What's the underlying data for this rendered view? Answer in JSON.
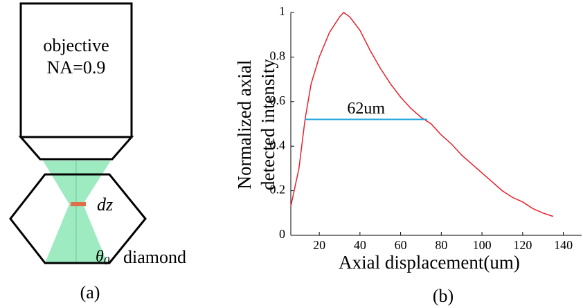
{
  "diagram": {
    "objective": [
      "objective",
      "NA=0.9"
    ],
    "dz": "dz",
    "theta": "θ",
    "theta_sub": "0",
    "material": "diamond",
    "panel": "(a)"
  },
  "chart_data": {
    "type": "line",
    "panel": "(b)",
    "x_label": "Axial displacement(um)",
    "y_label": [
      "Normalized axial",
      "detected intensity"
    ],
    "x": [
      6,
      10,
      13,
      16,
      20,
      25,
      30,
      32,
      35,
      40,
      45,
      50,
      55,
      60,
      65,
      70,
      75,
      80,
      85,
      90,
      95,
      100,
      105,
      110,
      115,
      120,
      125,
      130,
      135
    ],
    "series": [
      {
        "color": "#e8202a",
        "values": [
          0.13,
          0.3,
          0.52,
          0.68,
          0.8,
          0.91,
          0.98,
          1.0,
          0.98,
          0.92,
          0.83,
          0.75,
          0.68,
          0.62,
          0.57,
          0.53,
          0.5,
          0.45,
          0.41,
          0.36,
          0.32,
          0.28,
          0.24,
          0.2,
          0.17,
          0.15,
          0.12,
          0.1,
          0.085
        ]
      }
    ],
    "annotation": {
      "text": "62um",
      "x": [
        13,
        73
      ],
      "y": 0.52,
      "color": "#1ba5d8"
    },
    "xlim": [
      6,
      149
    ],
    "ylim": [
      0,
      1
    ],
    "xticks": [
      20,
      40,
      60,
      80,
      100,
      120,
      140
    ],
    "yticks": [
      0,
      0.2,
      0.4,
      0.6,
      0.8,
      1
    ]
  }
}
